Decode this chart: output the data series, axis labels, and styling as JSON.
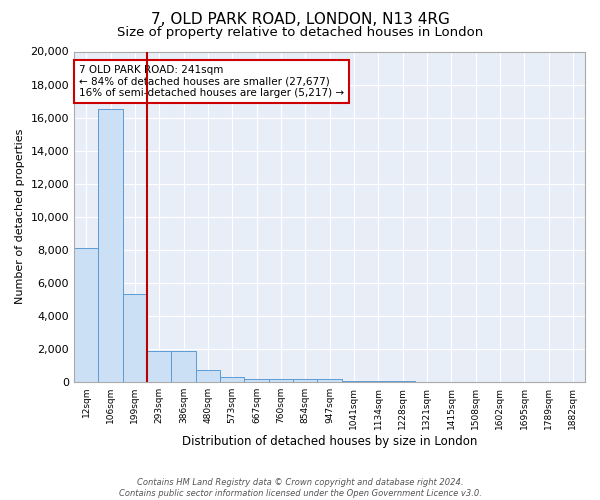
{
  "title": "7, OLD PARK ROAD, LONDON, N13 4RG",
  "subtitle": "Size of property relative to detached houses in London",
  "xlabel": "Distribution of detached houses by size in London",
  "ylabel": "Number of detached properties",
  "bar_labels": [
    "12sqm",
    "106sqm",
    "199sqm",
    "293sqm",
    "386sqm",
    "480sqm",
    "573sqm",
    "667sqm",
    "760sqm",
    "854sqm",
    "947sqm",
    "1041sqm",
    "1134sqm",
    "1228sqm",
    "1321sqm",
    "1415sqm",
    "1508sqm",
    "1602sqm",
    "1695sqm",
    "1789sqm",
    "1882sqm"
  ],
  "bar_heights": [
    8100,
    16500,
    5300,
    1850,
    1850,
    700,
    300,
    200,
    180,
    150,
    150,
    80,
    50,
    30,
    20,
    15,
    10,
    8,
    6,
    5,
    4
  ],
  "bar_color": "#cce0f5",
  "bar_edge_color": "#5b9bd5",
  "ylim": [
    0,
    20000
  ],
  "yticks": [
    0,
    2000,
    4000,
    6000,
    8000,
    10000,
    12000,
    14000,
    16000,
    18000,
    20000
  ],
  "red_line_x": 2.5,
  "annotation_text": "7 OLD PARK ROAD: 241sqm\n← 84% of detached houses are smaller (27,677)\n16% of semi-detached houses are larger (5,217) →",
  "annotation_box_color": "#ffffff",
  "annotation_box_edge": "#cc0000",
  "footnote": "Contains HM Land Registry data © Crown copyright and database right 2024.\nContains public sector information licensed under the Open Government Licence v3.0.",
  "fig_bg_color": "#ffffff",
  "bg_color": "#e8eef8",
  "grid_color": "#ffffff",
  "title_fontsize": 11,
  "subtitle_fontsize": 9.5
}
